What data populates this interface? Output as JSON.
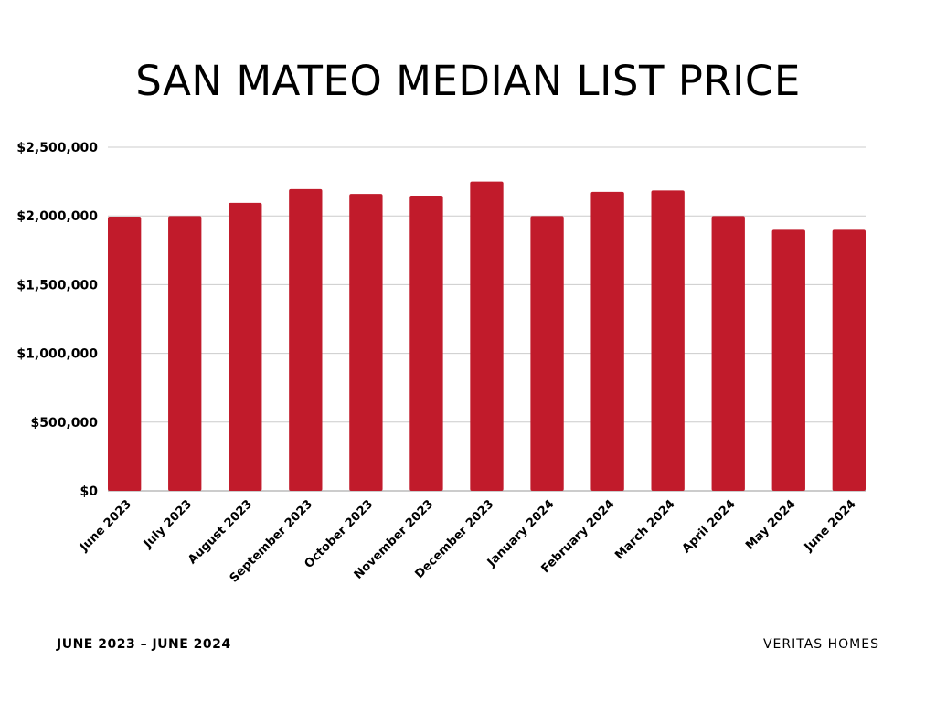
{
  "chart_data": {
    "type": "bar",
    "title": "SAN MATEO MEDIAN LIST PRICE",
    "categories": [
      "June 2023",
      "July 2023",
      "August 2023",
      "September 2023",
      "October 2023",
      "November 2023",
      "December 2023",
      "January 2024",
      "February 2024",
      "March 2024",
      "April 2024",
      "May 2024",
      "June 2024"
    ],
    "values": [
      1995000,
      1999000,
      2095000,
      2195000,
      2160000,
      2148000,
      2250000,
      1999000,
      2175000,
      2185000,
      1999000,
      1899000,
      1899000
    ],
    "ylim": [
      0,
      2500000
    ],
    "yticks": [
      0,
      500000,
      1000000,
      1500000,
      2000000,
      2500000
    ],
    "ytick_labels": [
      "$0",
      "$500,000",
      "$1,000,000",
      "$1,500,000",
      "$2,000,000",
      "$2,500,000"
    ],
    "grid": true,
    "bar_color": "#c11b2b",
    "grid_color": "#cccccc"
  },
  "footer": {
    "date_range": "JUNE 2023 – JUNE 2024",
    "brand": "VERITAS HOMES"
  }
}
